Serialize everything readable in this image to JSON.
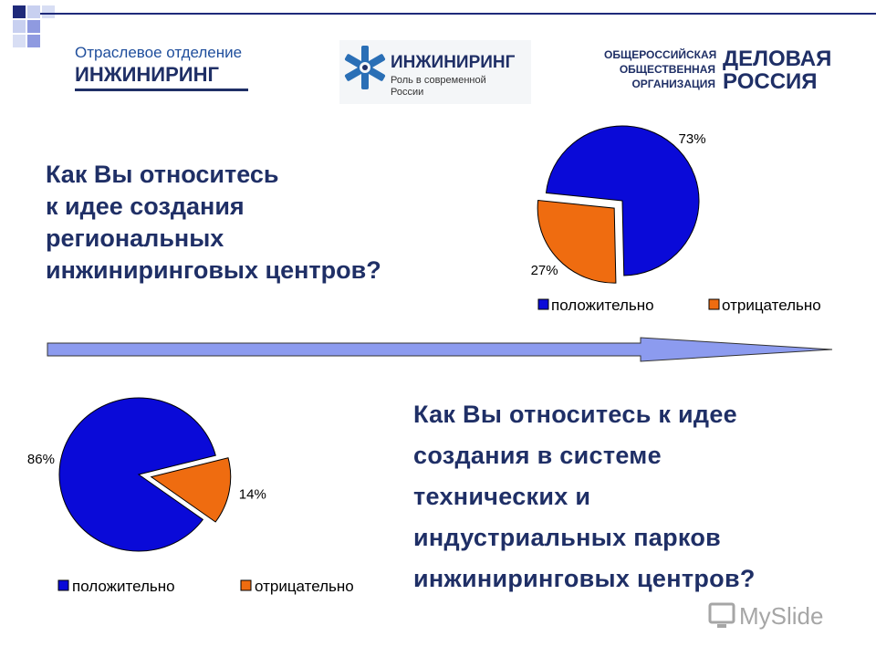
{
  "header": {
    "logo_left": {
      "line1": "Отраслевое отделение",
      "line2": "ИНЖИНИРИНГ"
    },
    "logo_center": {
      "title": "ИНЖИНИРИНГ",
      "subtitle_line1": "Роль в современной",
      "subtitle_line2": "России"
    },
    "logo_right": {
      "small_lines": [
        "ОБЩЕРОССИЙСКАЯ",
        "ОБЩЕСТВЕННАЯ",
        "ОРГАНИЗАЦИЯ"
      ],
      "big_line1": "ДЕЛОВАЯ",
      "big_line2": "РОССИЯ"
    }
  },
  "questions": {
    "q1": [
      "Как Вы относитесь",
      "к идее создания",
      "региональных",
      "инжиниринговых центров?"
    ],
    "q2": [
      "Как Вы относитесь к идее",
      "создания в системе",
      "технических и",
      "индустриальных парков",
      "инжиниринговых центров?"
    ]
  },
  "colors": {
    "positive": "#0a0ad8",
    "negative": "#ef6c10",
    "accent": "#1f2f66",
    "arrow_fill": "#8c9bef"
  },
  "chart_data": [
    {
      "type": "pie",
      "title": "",
      "categories": [
        "положительно",
        "отрицательно"
      ],
      "values": [
        73,
        27
      ],
      "labels": [
        "73%",
        "27%"
      ],
      "exploded": "отрицательно",
      "legend": "bottom"
    },
    {
      "type": "pie",
      "title": "",
      "categories": [
        "положительно",
        "отрицательно"
      ],
      "values": [
        86,
        14
      ],
      "labels": [
        "86%",
        "14%"
      ],
      "exploded": "отрицательно",
      "legend": "bottom"
    }
  ],
  "watermark": {
    "text": "MySlide",
    "icon": "monitor-icon"
  }
}
